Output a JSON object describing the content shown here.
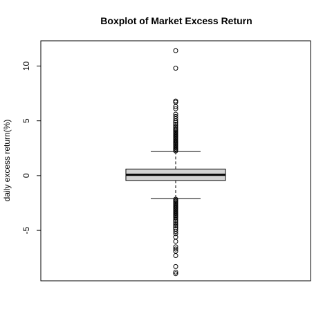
{
  "chart_data": {
    "type": "boxplot",
    "title": "Boxplot of Market Excess Return",
    "xlabel": "",
    "ylabel": "daily excess return(%)",
    "ylim": [
      -9.6,
      12.3
    ],
    "yticks": [
      -5,
      0,
      5,
      10
    ],
    "ytick_labels": [
      "-5",
      "0",
      "5",
      "10"
    ],
    "grid": false,
    "box": {
      "q1": -0.45,
      "median": 0.07,
      "q3": 0.6,
      "whisker_low": -2.1,
      "whisker_high": 2.2,
      "outliers_high": [
        2.25,
        2.35,
        2.45,
        2.55,
        2.65,
        2.75,
        2.85,
        2.95,
        3.05,
        3.15,
        3.25,
        3.35,
        3.45,
        3.55,
        3.65,
        3.75,
        3.85,
        3.95,
        4.05,
        4.15,
        4.25,
        4.4,
        4.55,
        4.7,
        4.85,
        5.0,
        5.2,
        5.4,
        5.6,
        6.1,
        6.3,
        6.7,
        6.8,
        9.8,
        11.4
      ],
      "outliers_low": [
        -2.15,
        -2.25,
        -2.35,
        -2.45,
        -2.55,
        -2.65,
        -2.75,
        -2.85,
        -2.95,
        -3.05,
        -3.15,
        -3.25,
        -3.35,
        -3.45,
        -3.55,
        -3.65,
        -3.75,
        -3.85,
        -4.0,
        -4.15,
        -4.3,
        -4.45,
        -4.6,
        -4.75,
        -4.9,
        -5.1,
        -5.3,
        -5.6,
        -6.0,
        -6.5,
        -6.7,
        -6.9,
        -7.3,
        -8.3,
        -8.8,
        -8.95
      ]
    }
  }
}
